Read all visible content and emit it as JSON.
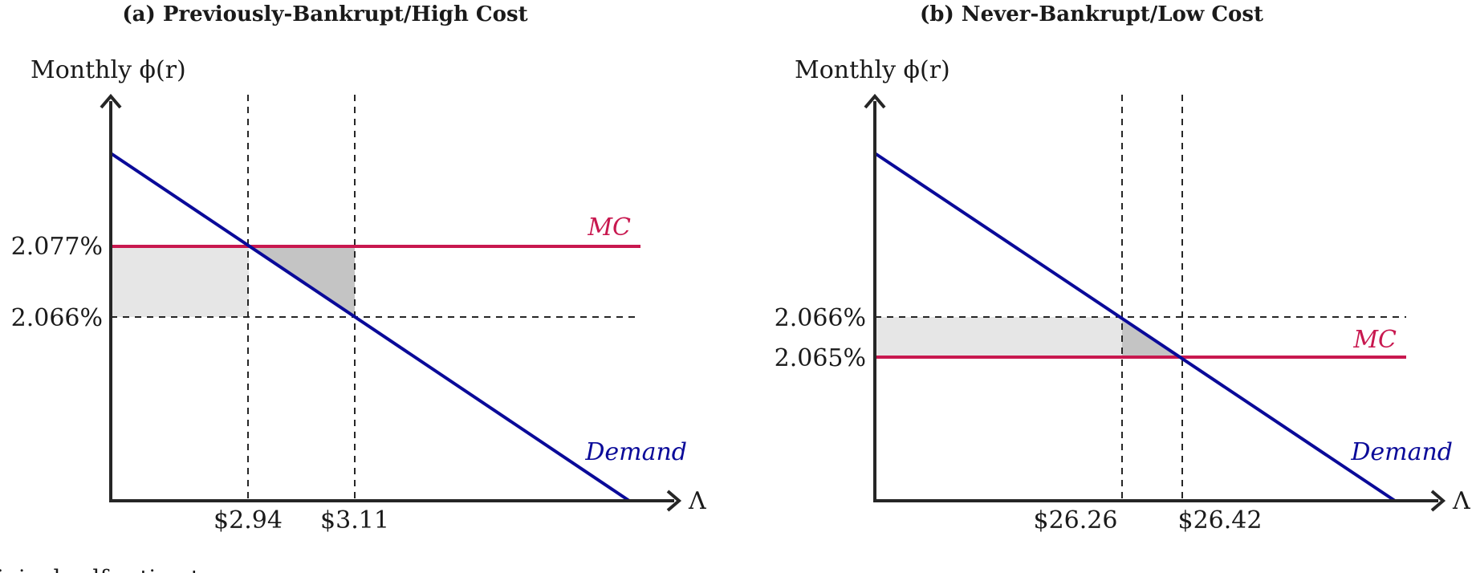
{
  "panels": [
    {
      "title": "(a) Previously-Bankrupt/High Cost",
      "y_axis_label": "Monthly ϕ(r)",
      "x_axis_label": "Λ",
      "y_ticks": [
        "2.077%",
        "2.066%"
      ],
      "x_ticks": [
        "$2.94",
        "$3.11"
      ],
      "mc_label": "MC",
      "demand_label": "Demand"
    },
    {
      "title": "(b) Never-Bankrupt/Low Cost",
      "y_axis_label": "Monthly ϕ(r)",
      "x_axis_label": "Λ",
      "y_ticks": [
        "2.066%",
        "2.065%"
      ],
      "x_ticks": [
        "$26.26",
        "$26.42"
      ],
      "mc_label": "MC",
      "demand_label": "Demand"
    }
  ],
  "caption_fragment": "iginal self-estimates",
  "colors": {
    "mc": "#c8184f",
    "demand": "#0a0a99",
    "light_shade": "#e6e6e6",
    "dark_shade": "#c4c4c4",
    "axis": "#262626"
  }
}
